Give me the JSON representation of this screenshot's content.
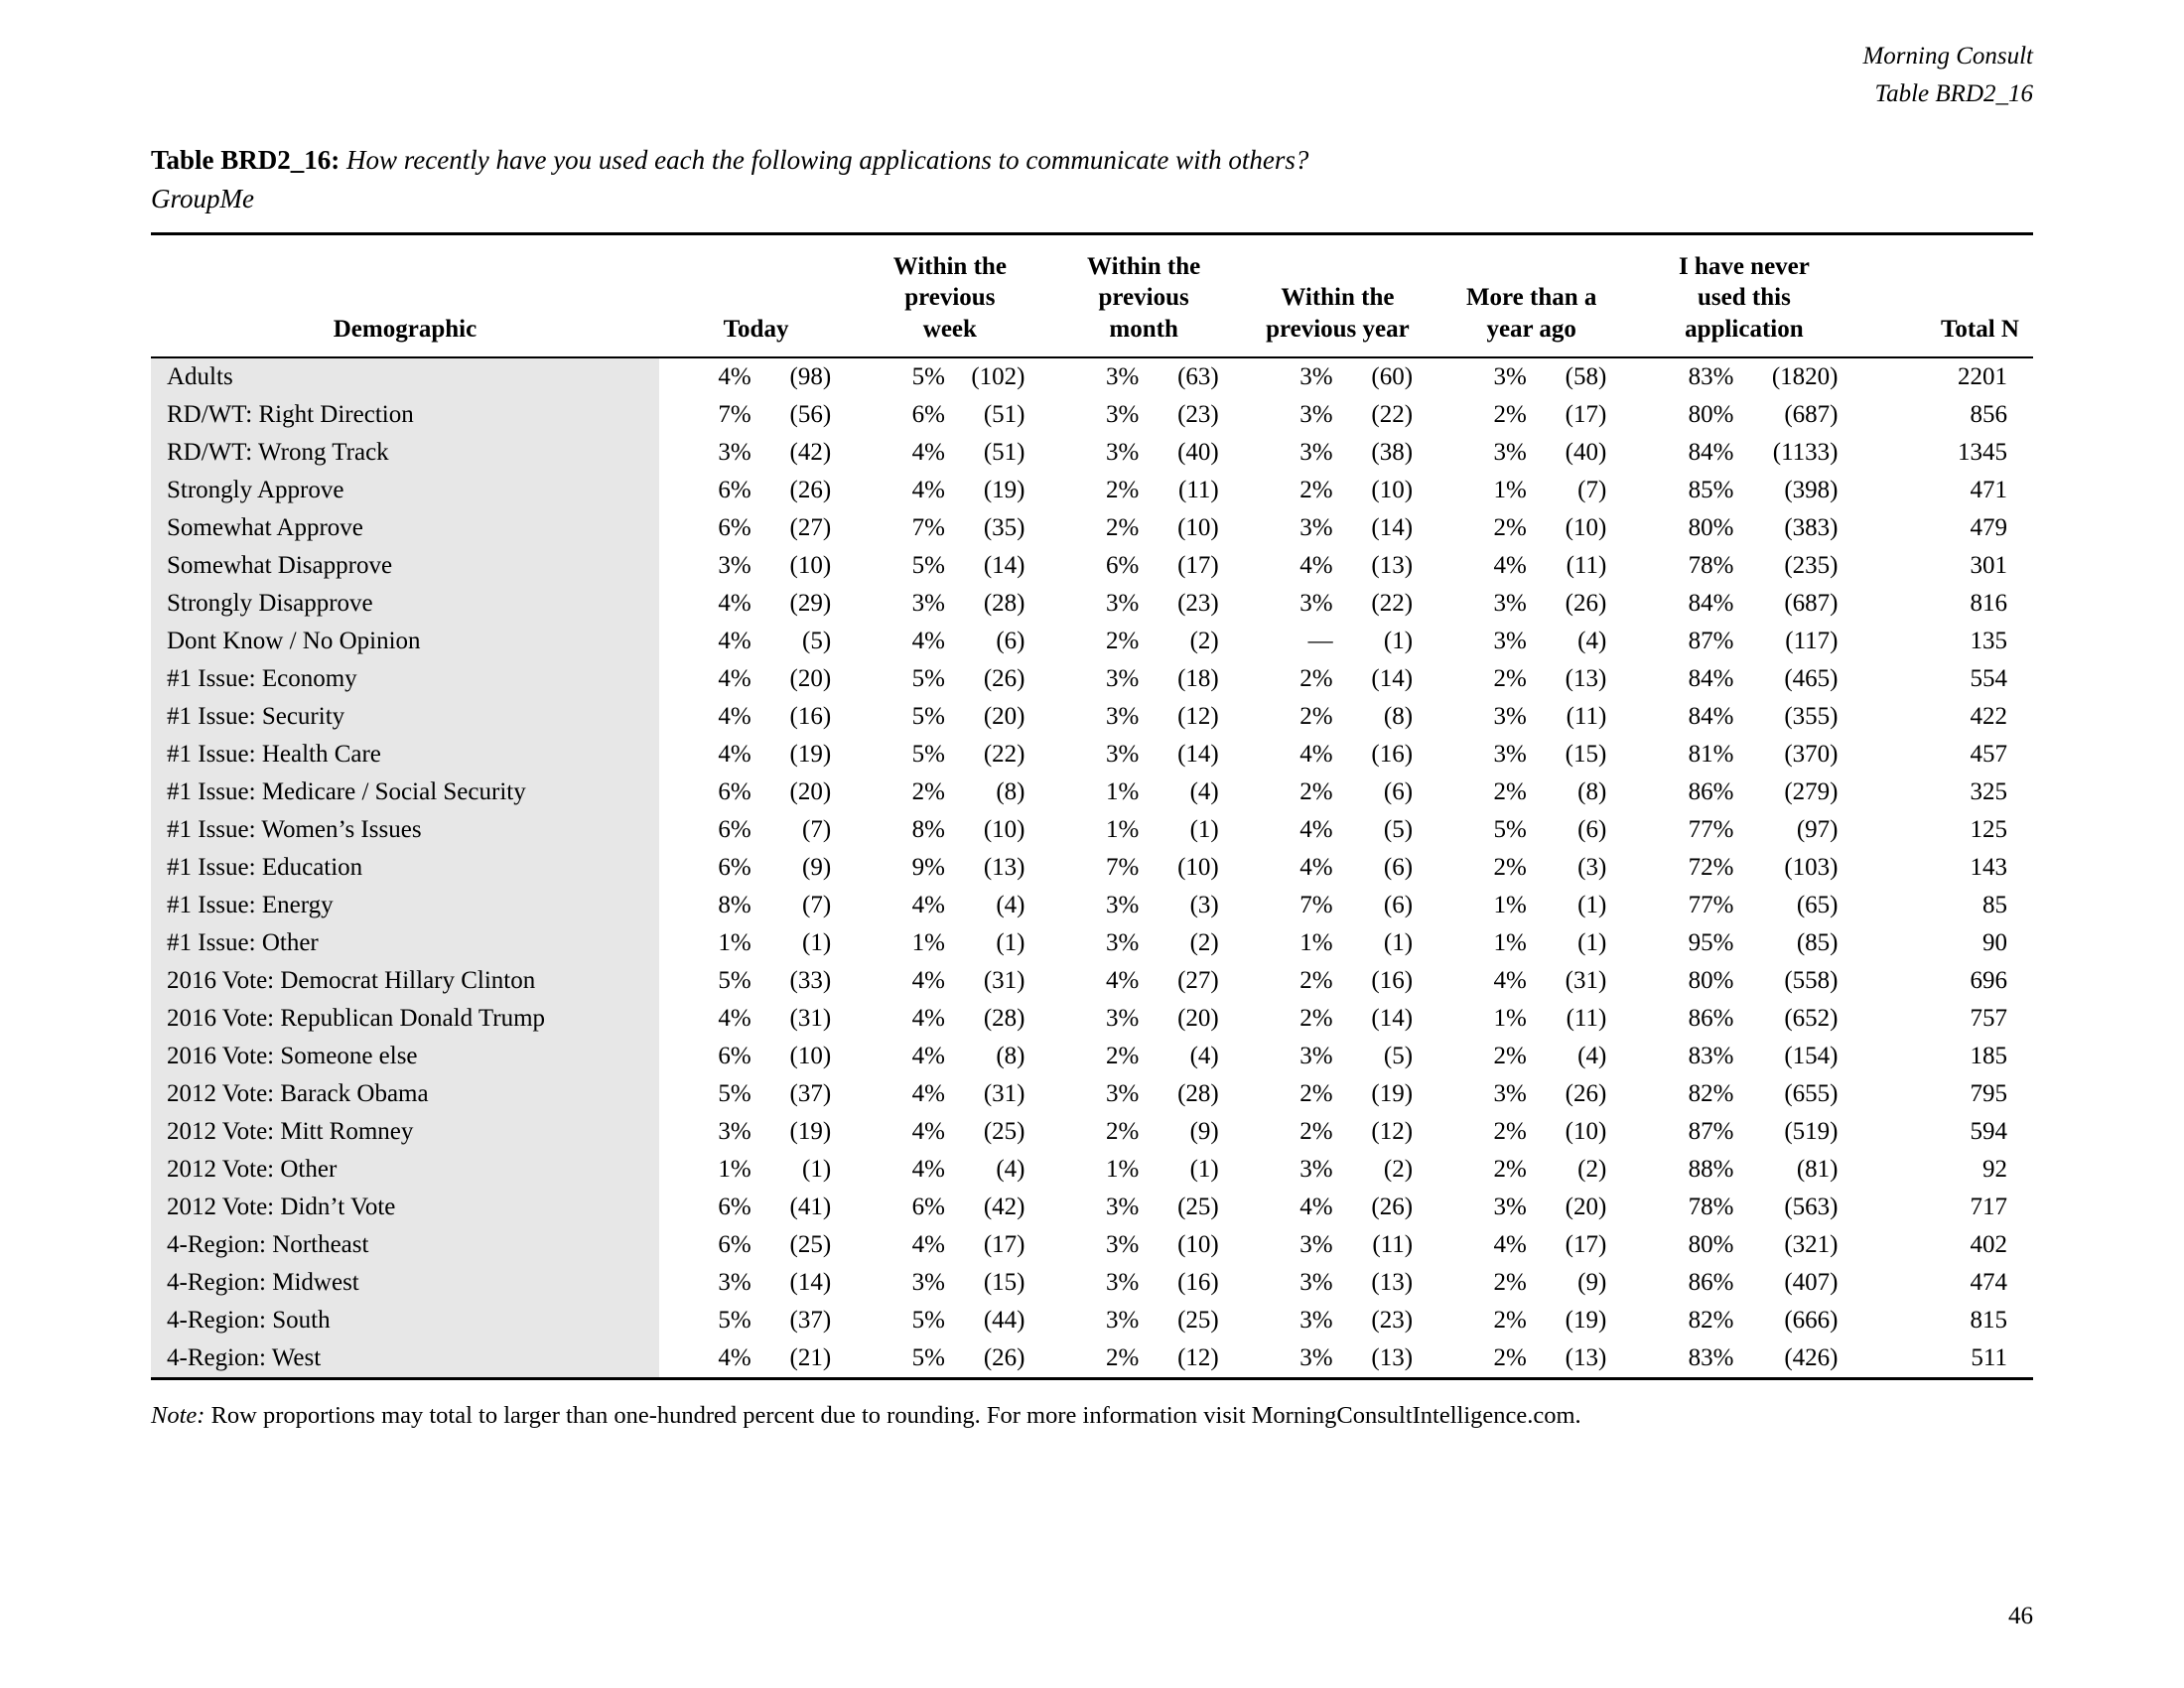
{
  "page_header": {
    "brand": "Morning Consult",
    "table_ref": "Table BRD2_16"
  },
  "title": {
    "label": "Table BRD2_16:",
    "question": "How recently have you used each the following applications to communicate with others?",
    "subtitle": "GroupMe"
  },
  "table": {
    "headers": {
      "demographic": "Demographic",
      "today": "Today",
      "week": "Within the\nprevious\nweek",
      "month": "Within the\nprevious\nmonth",
      "year": "Within the\nprevious year",
      "more_than_year": "More than a\nyear ago",
      "never": "I have never\nused this\napplication",
      "total": "Total N"
    },
    "rows": [
      [
        "Adults",
        "4%",
        "(98)",
        "5%",
        "(102)",
        "3%",
        "(63)",
        "3%",
        "(60)",
        "3%",
        "(58)",
        "83%",
        "(1820)",
        "2201"
      ],
      [
        "RD/WT: Right Direction",
        "7%",
        "(56)",
        "6%",
        "(51)",
        "3%",
        "(23)",
        "3%",
        "(22)",
        "2%",
        "(17)",
        "80%",
        "(687)",
        "856"
      ],
      [
        "RD/WT: Wrong Track",
        "3%",
        "(42)",
        "4%",
        "(51)",
        "3%",
        "(40)",
        "3%",
        "(38)",
        "3%",
        "(40)",
        "84%",
        "(1133)",
        "1345"
      ],
      [
        "Strongly Approve",
        "6%",
        "(26)",
        "4%",
        "(19)",
        "2%",
        "(11)",
        "2%",
        "(10)",
        "1%",
        "(7)",
        "85%",
        "(398)",
        "471"
      ],
      [
        "Somewhat Approve",
        "6%",
        "(27)",
        "7%",
        "(35)",
        "2%",
        "(10)",
        "3%",
        "(14)",
        "2%",
        "(10)",
        "80%",
        "(383)",
        "479"
      ],
      [
        "Somewhat Disapprove",
        "3%",
        "(10)",
        "5%",
        "(14)",
        "6%",
        "(17)",
        "4%",
        "(13)",
        "4%",
        "(11)",
        "78%",
        "(235)",
        "301"
      ],
      [
        "Strongly Disapprove",
        "4%",
        "(29)",
        "3%",
        "(28)",
        "3%",
        "(23)",
        "3%",
        "(22)",
        "3%",
        "(26)",
        "84%",
        "(687)",
        "816"
      ],
      [
        "Dont Know / No Opinion",
        "4%",
        "(5)",
        "4%",
        "(6)",
        "2%",
        "(2)",
        "—",
        "(1)",
        "3%",
        "(4)",
        "87%",
        "(117)",
        "135"
      ],
      [
        "#1 Issue: Economy",
        "4%",
        "(20)",
        "5%",
        "(26)",
        "3%",
        "(18)",
        "2%",
        "(14)",
        "2%",
        "(13)",
        "84%",
        "(465)",
        "554"
      ],
      [
        "#1 Issue: Security",
        "4%",
        "(16)",
        "5%",
        "(20)",
        "3%",
        "(12)",
        "2%",
        "(8)",
        "3%",
        "(11)",
        "84%",
        "(355)",
        "422"
      ],
      [
        "#1 Issue: Health Care",
        "4%",
        "(19)",
        "5%",
        "(22)",
        "3%",
        "(14)",
        "4%",
        "(16)",
        "3%",
        "(15)",
        "81%",
        "(370)",
        "457"
      ],
      [
        "#1 Issue: Medicare / Social Security",
        "6%",
        "(20)",
        "2%",
        "(8)",
        "1%",
        "(4)",
        "2%",
        "(6)",
        "2%",
        "(8)",
        "86%",
        "(279)",
        "325"
      ],
      [
        "#1 Issue: Women’s Issues",
        "6%",
        "(7)",
        "8%",
        "(10)",
        "1%",
        "(1)",
        "4%",
        "(5)",
        "5%",
        "(6)",
        "77%",
        "(97)",
        "125"
      ],
      [
        "#1 Issue: Education",
        "6%",
        "(9)",
        "9%",
        "(13)",
        "7%",
        "(10)",
        "4%",
        "(6)",
        "2%",
        "(3)",
        "72%",
        "(103)",
        "143"
      ],
      [
        "#1 Issue: Energy",
        "8%",
        "(7)",
        "4%",
        "(4)",
        "3%",
        "(3)",
        "7%",
        "(6)",
        "1%",
        "(1)",
        "77%",
        "(65)",
        "85"
      ],
      [
        "#1 Issue: Other",
        "1%",
        "(1)",
        "1%",
        "(1)",
        "3%",
        "(2)",
        "1%",
        "(1)",
        "1%",
        "(1)",
        "95%",
        "(85)",
        "90"
      ],
      [
        "2016 Vote: Democrat Hillary Clinton",
        "5%",
        "(33)",
        "4%",
        "(31)",
        "4%",
        "(27)",
        "2%",
        "(16)",
        "4%",
        "(31)",
        "80%",
        "(558)",
        "696"
      ],
      [
        "2016 Vote: Republican Donald Trump",
        "4%",
        "(31)",
        "4%",
        "(28)",
        "3%",
        "(20)",
        "2%",
        "(14)",
        "1%",
        "(11)",
        "86%",
        "(652)",
        "757"
      ],
      [
        "2016 Vote: Someone else",
        "6%",
        "(10)",
        "4%",
        "(8)",
        "2%",
        "(4)",
        "3%",
        "(5)",
        "2%",
        "(4)",
        "83%",
        "(154)",
        "185"
      ],
      [
        "2012 Vote: Barack Obama",
        "5%",
        "(37)",
        "4%",
        "(31)",
        "3%",
        "(28)",
        "2%",
        "(19)",
        "3%",
        "(26)",
        "82%",
        "(655)",
        "795"
      ],
      [
        "2012 Vote: Mitt Romney",
        "3%",
        "(19)",
        "4%",
        "(25)",
        "2%",
        "(9)",
        "2%",
        "(12)",
        "2%",
        "(10)",
        "87%",
        "(519)",
        "594"
      ],
      [
        "2012 Vote: Other",
        "1%",
        "(1)",
        "4%",
        "(4)",
        "1%",
        "(1)",
        "3%",
        "(2)",
        "2%",
        "(2)",
        "88%",
        "(81)",
        "92"
      ],
      [
        "2012 Vote: Didn’t Vote",
        "6%",
        "(41)",
        "6%",
        "(42)",
        "3%",
        "(25)",
        "4%",
        "(26)",
        "3%",
        "(20)",
        "78%",
        "(563)",
        "717"
      ],
      [
        "4-Region: Northeast",
        "6%",
        "(25)",
        "4%",
        "(17)",
        "3%",
        "(10)",
        "3%",
        "(11)",
        "4%",
        "(17)",
        "80%",
        "(321)",
        "402"
      ],
      [
        "4-Region: Midwest",
        "3%",
        "(14)",
        "3%",
        "(15)",
        "3%",
        "(16)",
        "3%",
        "(13)",
        "2%",
        "(9)",
        "86%",
        "(407)",
        "474"
      ],
      [
        "4-Region: South",
        "5%",
        "(37)",
        "5%",
        "(44)",
        "3%",
        "(25)",
        "3%",
        "(23)",
        "2%",
        "(19)",
        "82%",
        "(666)",
        "815"
      ],
      [
        "4-Region: West",
        "4%",
        "(21)",
        "5%",
        "(26)",
        "2%",
        "(12)",
        "3%",
        "(13)",
        "2%",
        "(13)",
        "83%",
        "(426)",
        "511"
      ]
    ]
  },
  "note": {
    "label": "Note:",
    "text": "Row proportions may total to larger than one-hundred percent due to rounding. For more information visit MorningConsultIntelligence.com."
  },
  "page_number": "46"
}
